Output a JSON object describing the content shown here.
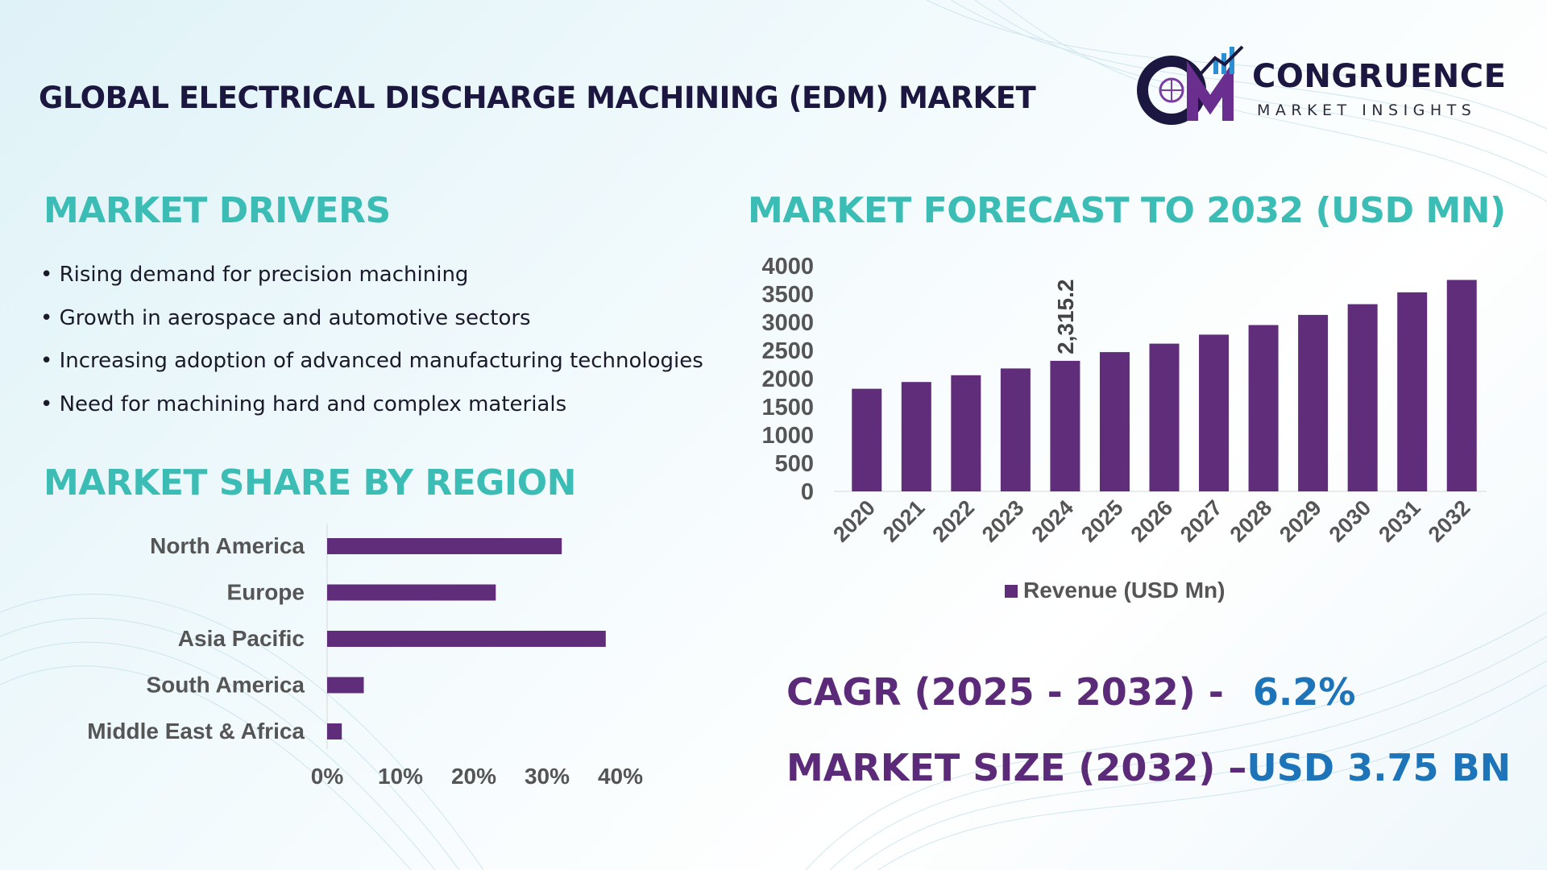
{
  "header": {
    "title": "GLOBAL ELECTRICAL DISCHARGE MACHINING (EDM) MARKET",
    "logo_line1": "CONGRUENCE",
    "logo_line2": "MARKET INSIGHTS",
    "logo_monogram": "CM"
  },
  "colors": {
    "bar": "#5f2d7a",
    "section_title": "#3bbdb5",
    "kpi_label": "#5b2a78",
    "kpi_value": "#1d74b9",
    "title": "#1b1740"
  },
  "drivers": {
    "title": "MARKET DRIVERS",
    "items": [
      "• Rising demand for precision machining",
      "• Growth in aerospace and automotive sectors",
      "• Increasing adoption of advanced manufacturing technologies",
      "• Need for machining hard and complex materials"
    ]
  },
  "region": {
    "title": "MARKET SHARE BY REGION"
  },
  "forecast": {
    "title": "MARKET FORECAST TO 2032 (USD MN)"
  },
  "kpis": {
    "cagr_label": "CAGR (2025 - 2032) -",
    "cagr_value": "6.2%",
    "size_label": "MARKET SIZE (2032) –",
    "size_value": "USD 3.75 BN"
  },
  "chart_data": [
    {
      "type": "bar",
      "orientation": "horizontal",
      "categories": [
        "North America",
        "Europe",
        "Asia Pacific",
        "South America",
        "Middle East & Africa"
      ],
      "values": [
        32,
        23,
        38,
        5,
        2
      ],
      "xlim": [
        0,
        40
      ],
      "xticks": [
        "0%",
        "10%",
        "20%",
        "30%",
        "40%"
      ],
      "grid": false
    },
    {
      "type": "bar",
      "categories": [
        "2020",
        "2021",
        "2022",
        "2023",
        "2024",
        "2025",
        "2026",
        "2027",
        "2028",
        "2029",
        "2030",
        "2031",
        "2032"
      ],
      "series": [
        {
          "name": "Revenue (USD Mn)",
          "values": [
            1820,
            1940,
            2060,
            2180,
            2315.2,
            2470,
            2620,
            2780,
            2950,
            3130,
            3320,
            3530,
            3750
          ]
        }
      ],
      "data_labels": [
        {
          "index": 4,
          "text": "2,315.2"
        }
      ],
      "ylim": [
        0,
        4000
      ],
      "yticks": [
        "0",
        "500",
        "1000",
        "1500",
        "2000",
        "2500",
        "3000",
        "3500",
        "4000"
      ],
      "legend": "bottom",
      "grid": false
    }
  ]
}
